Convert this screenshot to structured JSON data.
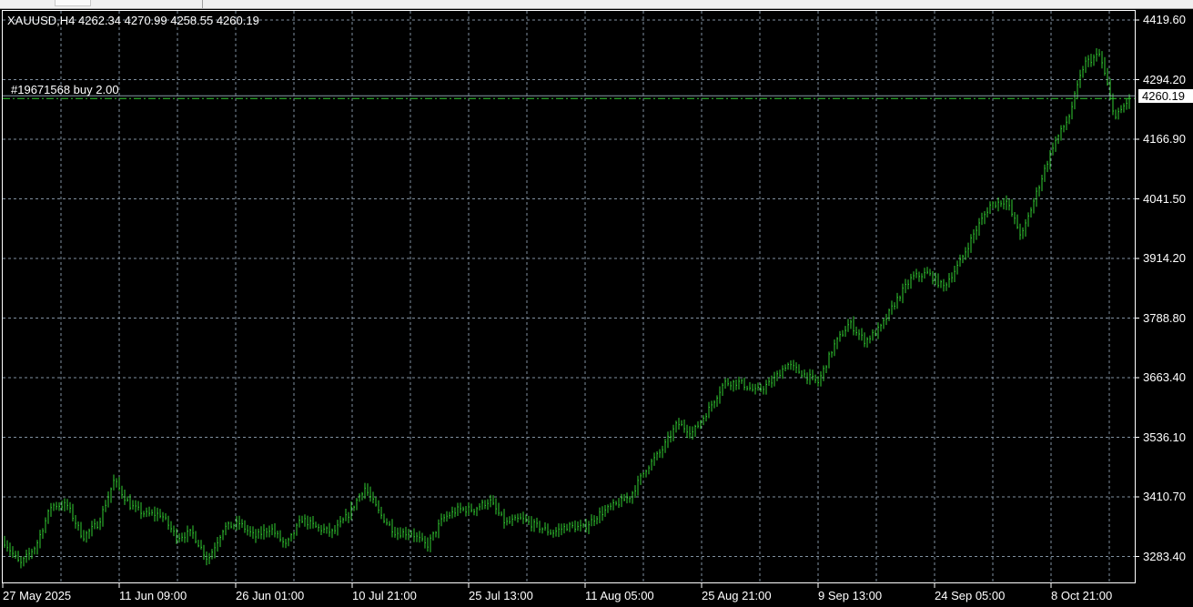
{
  "window": {
    "symbol_header": "XAUUSD,H4  4262.34 4270.99 4258.55 4260.19"
  },
  "order": {
    "label": "#19671568 buy 2.00",
    "price": 4260.19
  },
  "current_price": "4260.19",
  "colors": {
    "background": "#000000",
    "bars": "#32cd32",
    "grid": "#8090a0",
    "order_line": "#32cd32",
    "bid_line": "#8a9aa8",
    "text": "#ffffff"
  },
  "chart_data": {
    "type": "bar",
    "symbol": "XAUUSD",
    "timeframe": "H4",
    "ohlc_last": {
      "open": 4262.34,
      "high": 4270.99,
      "low": 4258.55,
      "close": 4260.19
    },
    "y_ticks": [
      "4419.60",
      "4294.20",
      "4166.90",
      "4041.50",
      "3914.20",
      "3788.80",
      "3663.40",
      "3536.10",
      "3410.70",
      "3283.40"
    ],
    "x_ticks": [
      "27 May 2025",
      "11 Jun 09:00",
      "26 Jun 01:00",
      "10 Jul 21:00",
      "25 Jul 13:00",
      "11 Aug 05:00",
      "25 Aug 21:00",
      "9 Sep 13:00",
      "24 Sep 05:00",
      "8 Oct 21:00"
    ],
    "ylim": [
      3250,
      4440
    ],
    "grid": true,
    "approx_closes": [
      3322,
      3274,
      3313,
      3399,
      3399,
      3332,
      3361,
      3451,
      3399,
      3380,
      3380,
      3332,
      3341,
      3284,
      3351,
      3361,
      3332,
      3351,
      3313,
      3370,
      3351,
      3341,
      3380,
      3437,
      3380,
      3341,
      3341,
      3313,
      3370,
      3390,
      3390,
      3409,
      3361,
      3370,
      3355,
      3341,
      3355,
      3351,
      3380,
      3399,
      3418,
      3476,
      3514,
      3571,
      3552,
      3600,
      3657,
      3657,
      3638,
      3657,
      3696,
      3676,
      3657,
      3734,
      3782,
      3744,
      3772,
      3830,
      3878,
      3887,
      3858,
      3906,
      3973,
      4031,
      4040,
      3964,
      4060,
      4155,
      4213,
      4328,
      4347,
      4213,
      4260
    ]
  }
}
